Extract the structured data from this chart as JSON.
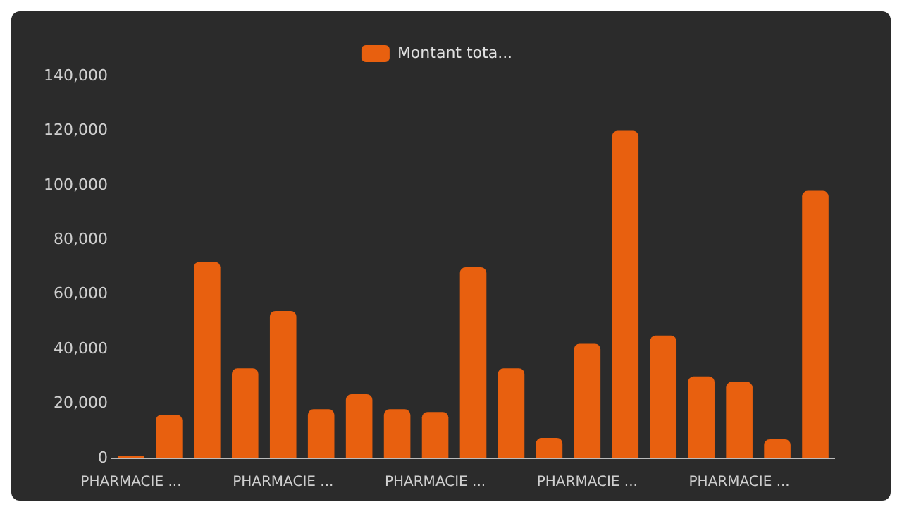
{
  "chart_data": {
    "type": "bar",
    "categories": [
      "PHARMACIE ...",
      null,
      null,
      null,
      "PHARMACIE ...",
      null,
      null,
      null,
      "PHARMACIE ...",
      null,
      null,
      null,
      "PHARMACIE ...",
      null,
      null,
      null,
      "PHARMACIE ...",
      null,
      null
    ],
    "series": [
      {
        "name": "Montant tota...",
        "color": "#e8600f",
        "values": [
          1000,
          16000,
          72000,
          33000,
          54000,
          18000,
          23500,
          18000,
          17000,
          70000,
          33000,
          7500,
          42000,
          120000,
          45000,
          30000,
          28000,
          7000,
          98000
        ]
      }
    ],
    "ylim": [
      0,
      140000
    ],
    "yticks": [
      0,
      {
        "value": 20000,
        "label": "20,000"
      },
      {
        "value": 40000,
        "label": "40,000"
      },
      {
        "value": 60000,
        "label": "60,000"
      },
      {
        "value": 80000,
        "label": "80,000"
      },
      {
        "value": 100000,
        "label": "100,000"
      },
      {
        "value": 120000,
        "label": "120,000"
      },
      {
        "value": 140000,
        "label": "140,000"
      }
    ],
    "grid": false,
    "legend": "top"
  }
}
